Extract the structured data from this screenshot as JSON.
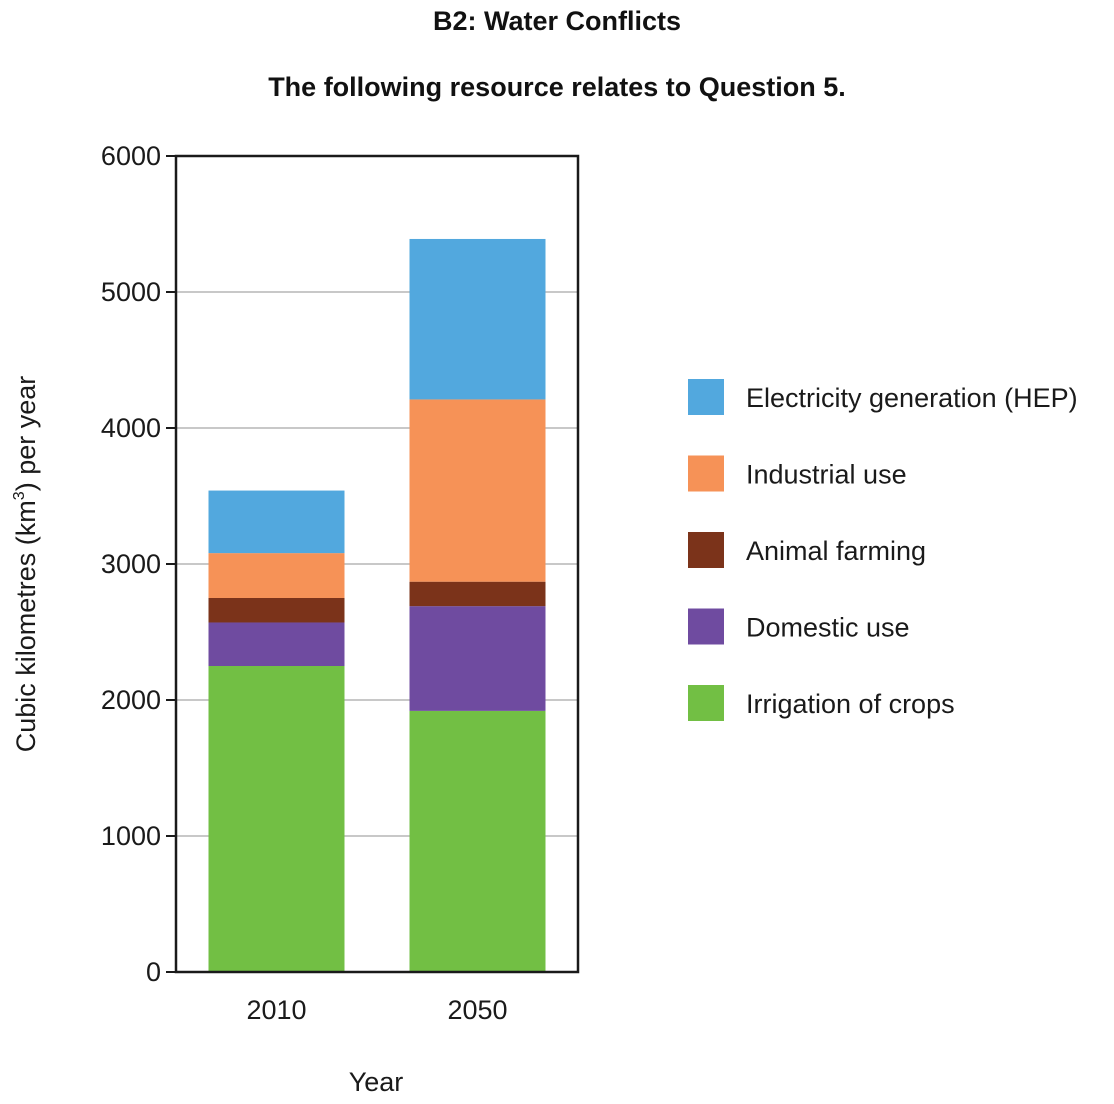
{
  "header": {
    "section_title": "B2: Water Conflicts",
    "subtitle": "The following resource relates to Question 5."
  },
  "chart_data": {
    "type": "bar",
    "stacked": true,
    "categories": [
      "2010",
      "2050"
    ],
    "xlabel": "Year",
    "ylabel_prefix": "Cubic kilometres (km",
    "ylabel_superscript": "3",
    "ylabel_suffix": ") per year",
    "ylim": [
      0,
      6000
    ],
    "yticks": [
      0,
      1000,
      2000,
      3000,
      4000,
      5000,
      6000
    ],
    "grid": true,
    "legend_position": "right",
    "series": [
      {
        "name": "Irrigation of crops",
        "color": "#72bf44",
        "values": [
          2250,
          1920
        ]
      },
      {
        "name": "Domestic use",
        "color": "#6f4ba0",
        "values": [
          320,
          770
        ]
      },
      {
        "name": "Animal farming",
        "color": "#7b331a",
        "values": [
          180,
          180
        ]
      },
      {
        "name": "Industrial use",
        "color": "#f69257",
        "values": [
          330,
          1340
        ]
      },
      {
        "name": "Electricity generation (HEP)",
        "color": "#52a8de",
        "values": [
          460,
          1180
        ]
      }
    ],
    "legend_order": [
      "Electricity generation (HEP)",
      "Industrial use",
      "Animal farming",
      "Domestic use",
      "Irrigation of crops"
    ]
  }
}
